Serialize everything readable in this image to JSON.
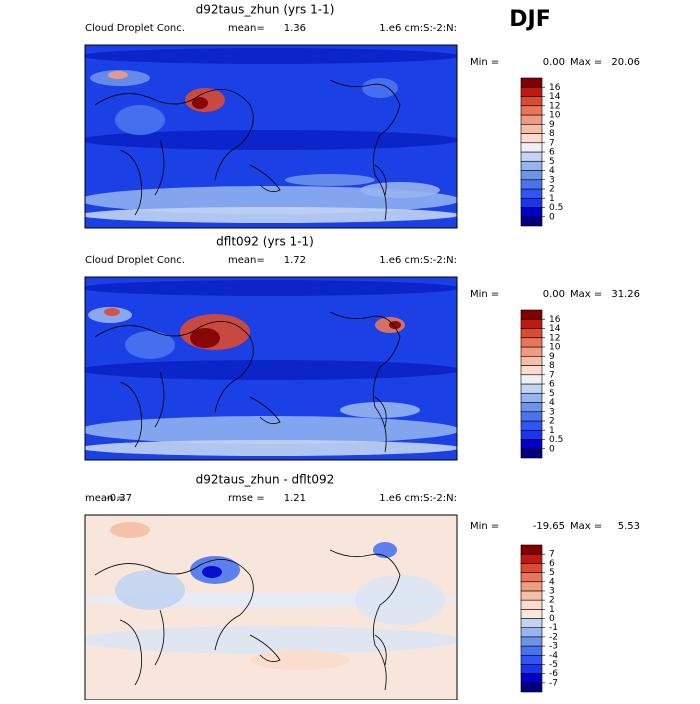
{
  "title": "DJF",
  "panels": [
    {
      "title": "d92taus_zhun (yrs 1-1)",
      "left_label": "Cloud Droplet Conc.",
      "stat_label": "mean=",
      "stat": "1.36",
      "units": "1.e6 cm:S:-2:N:",
      "min_label": "Min =",
      "min": "0.00",
      "max_label": "Max =",
      "max": "20.06",
      "levels": [
        0,
        0.5,
        1,
        2,
        3,
        4,
        5,
        6,
        7,
        8,
        9,
        10,
        12,
        14,
        16
      ],
      "colors": [
        "#00007f",
        "#0000c8",
        "#1a35f0",
        "#2f55f5",
        "#4a74ee",
        "#6e94ea",
        "#96b4ee",
        "#c2d4f2",
        "#eef0f6",
        "#fbdccc",
        "#f6bea6",
        "#f09c80",
        "#e8765a",
        "#dc4a30",
        "#c01a10",
        "#800000"
      ]
    },
    {
      "title": "dflt092 (yrs 1-1)",
      "left_label": "Cloud Droplet Conc.",
      "stat_label": "mean=",
      "stat": "1.72",
      "units": "1.e6 cm:S:-2:N:",
      "min_label": "Min =",
      "min": "0.00",
      "max_label": "Max =",
      "max": "31.26",
      "levels": [
        0,
        0.5,
        1,
        2,
        3,
        4,
        5,
        6,
        7,
        8,
        9,
        10,
        12,
        14,
        16
      ],
      "colors": [
        "#00007f",
        "#0000c8",
        "#1a35f0",
        "#2f55f5",
        "#4a74ee",
        "#6e94ea",
        "#96b4ee",
        "#c2d4f2",
        "#eef0f6",
        "#fbdccc",
        "#f6bea6",
        "#f09c80",
        "#e8765a",
        "#dc4a30",
        "#c01a10",
        "#800000"
      ]
    },
    {
      "title": "d92taus_zhun - dflt092",
      "left_label": "mean =",
      "left_value": "-0.37",
      "stat_label": "rmse =",
      "stat": "1.21",
      "units": "1.e6 cm:S:-2:N:",
      "min_label": "Min =",
      "min": "-19.65",
      "max_label": "Max =",
      "max": "5.53",
      "levels": [
        -7,
        -6,
        -5,
        -4,
        -3,
        -2,
        -1,
        0,
        1,
        2,
        3,
        4,
        5,
        6,
        7
      ],
      "colors": [
        "#00007f",
        "#0000c8",
        "#1a35f0",
        "#2f55f5",
        "#4a74ee",
        "#6e94ea",
        "#96b4ee",
        "#c2d4f2",
        "#fbe6dc",
        "#fbdccc",
        "#f6bea6",
        "#f09c80",
        "#e8765a",
        "#dc4a30",
        "#c01a10",
        "#800000"
      ]
    }
  ]
}
